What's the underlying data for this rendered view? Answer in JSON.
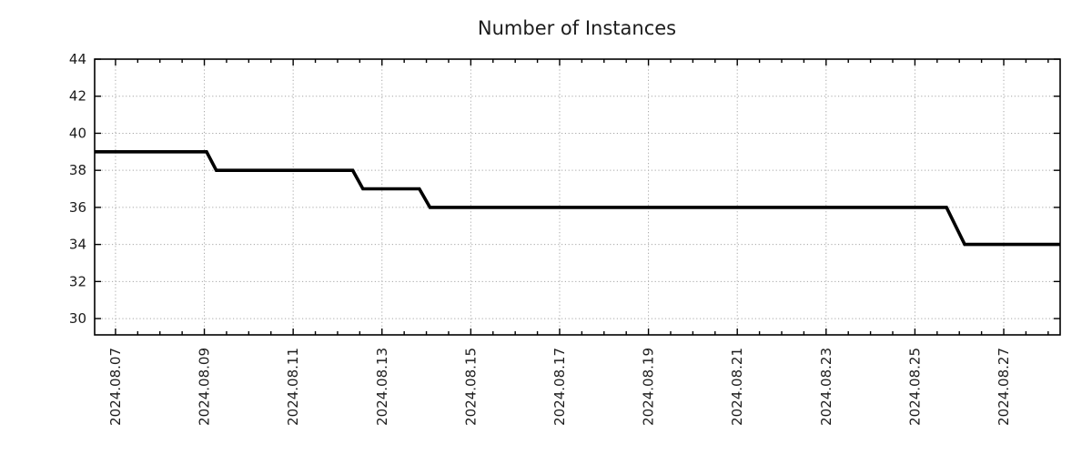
{
  "chart_data": {
    "type": "line",
    "subtype": "step-time-series",
    "title": "Number of Instances",
    "legend": {
      "show": false
    },
    "grid": {
      "show": true,
      "style": "dotted"
    },
    "x_axis": {
      "label": "",
      "unit": "date",
      "range_days_of_august_2024": [
        6.53,
        28.27
      ],
      "major_tick_days": [
        7,
        9,
        11,
        13,
        15,
        17,
        19,
        21,
        23,
        25,
        27
      ],
      "tick_labels": [
        "2024.08.07",
        "2024.08.09",
        "2024.08.11",
        "2024.08.13",
        "2024.08.15",
        "2024.08.17",
        "2024.08.19",
        "2024.08.21",
        "2024.08.23",
        "2024.08.25",
        "2024.08.27"
      ],
      "minor_tick_step_days": 0.5,
      "tick_label_rotation_deg": -90
    },
    "y_axis": {
      "label": "",
      "range": [
        29.12,
        44
      ],
      "tick_values": [
        30,
        32,
        34,
        36,
        38,
        40,
        42,
        44
      ],
      "tick_labels": [
        "30",
        "32",
        "34",
        "36",
        "38",
        "40",
        "42",
        "44"
      ]
    },
    "series": [
      {
        "name": "instances",
        "color": "#000000",
        "line_width": 3.6,
        "points": [
          {
            "day": 6.53,
            "value": 39
          },
          {
            "day": 9.05,
            "value": 39
          },
          {
            "day": 9.27,
            "value": 38
          },
          {
            "day": 12.34,
            "value": 38
          },
          {
            "day": 12.57,
            "value": 37
          },
          {
            "day": 13.84,
            "value": 37
          },
          {
            "day": 14.08,
            "value": 36
          },
          {
            "day": 25.71,
            "value": 36
          },
          {
            "day": 26.12,
            "value": 34
          },
          {
            "day": 28.27,
            "value": 34
          }
        ],
        "plateau_summary": [
          {
            "from": "2024.08.06",
            "to": "2024.08.09",
            "value": 39
          },
          {
            "from": "2024.08.09",
            "to": "2024.08.12",
            "value": 38
          },
          {
            "from": "2024.08.12",
            "to": "2024.08.14",
            "value": 37
          },
          {
            "from": "2024.08.14",
            "to": "2024.08.26",
            "value": 36
          },
          {
            "from": "2024.08.26",
            "to": "2024.08.28",
            "value": 34
          }
        ]
      }
    ],
    "colors": {
      "line": "#000000",
      "grid": "#a6a6a6",
      "axis": "#000000",
      "text": "#1c1c1c",
      "background": "#ffffff"
    }
  }
}
